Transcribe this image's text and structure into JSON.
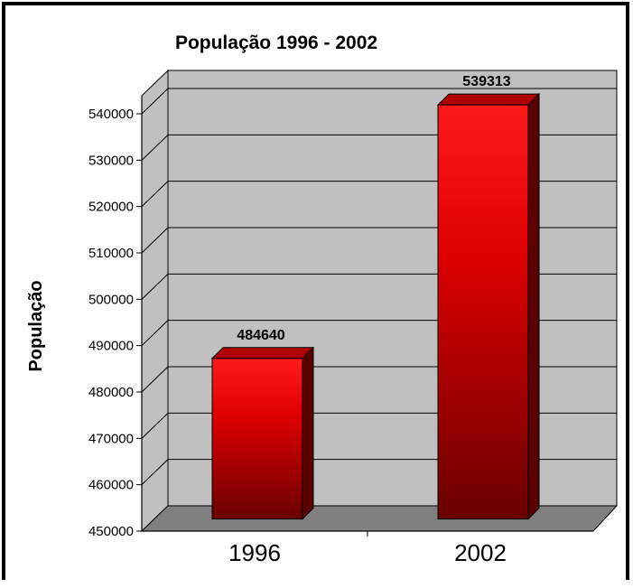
{
  "chart_data": {
    "type": "bar",
    "title": "População 1996 - 2002",
    "xlabel": "",
    "ylabel": "População",
    "categories": [
      "1996",
      "2002"
    ],
    "values": [
      484640,
      539313
    ],
    "data_labels": [
      "484640",
      "539313"
    ],
    "ylim": [
      450000,
      540000
    ],
    "yticks": [
      "450000",
      "460000",
      "470000",
      "480000",
      "490000",
      "500000",
      "510000",
      "520000",
      "530000",
      "540000"
    ],
    "grid": true,
    "legend": "none",
    "colors": {
      "bar_front_light": "#ff1a1a",
      "bar_front_dark": "#6a0000",
      "bar_side": "#5a0000",
      "bar_top": "#b00000",
      "wall": "#c0c0c0",
      "floor": "#808080"
    }
  }
}
